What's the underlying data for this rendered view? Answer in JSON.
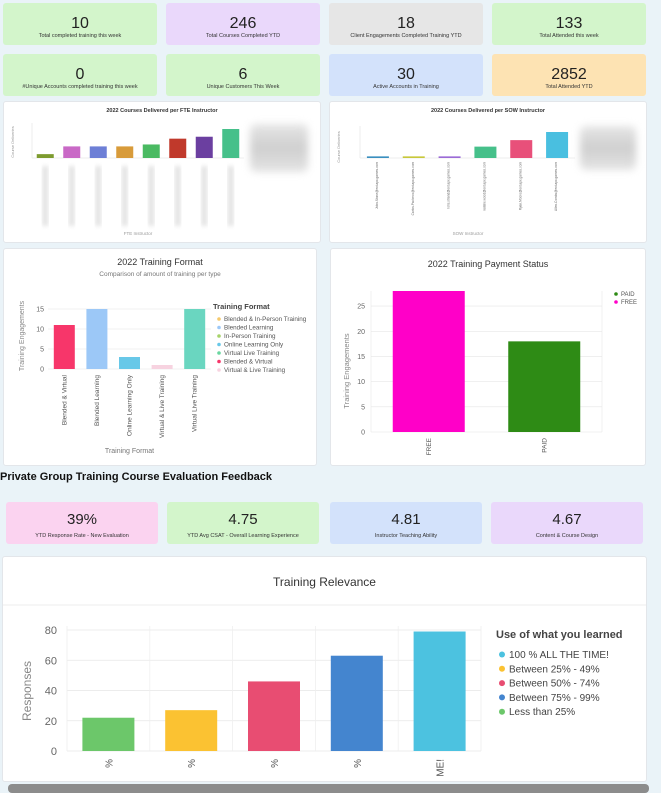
{
  "kpis_row1": [
    {
      "value": "10",
      "label": "Total completed training this week",
      "color": "#d3f5cb"
    },
    {
      "value": "246",
      "label": "Total Courses Completed YTD",
      "color": "#ead8fb"
    },
    {
      "value": "18",
      "label": "Client Engagements Completed Training YTD",
      "color": "#e6e6e6"
    },
    {
      "value": "133",
      "label": "Total Attended this week",
      "color": "#d3f5cb"
    }
  ],
  "kpis_row2": [
    {
      "value": "0",
      "label": "#Unique Accounts completed training this week",
      "color": "#d3f5cb"
    },
    {
      "value": "6",
      "label": "Unique Customers This Week",
      "color": "#d3f5cb"
    },
    {
      "value": "30",
      "label": "Active Accounts in Training",
      "color": "#d3e2fb"
    },
    {
      "value": "2852",
      "label": "Total Attended YTD",
      "color": "#fde3b3"
    }
  ],
  "fte_chart": {
    "title": "2022 Courses Delivered per FTE Instructor",
    "xlabel": "FTE Instructor",
    "ylabel": "Course Deliveries",
    "values": [
      2,
      6,
      6,
      6,
      7,
      10,
      11,
      15
    ],
    "colors": [
      "#7d9b2f",
      "#c969c6",
      "#6d7fd6",
      "#d89b3a",
      "#4aba62",
      "#c0392b",
      "#6b3fa0",
      "#46c08a"
    ]
  },
  "sow_chart": {
    "title": "2022 Courses Delivered per SOW Instructor",
    "xlabel": "SOW Instructor",
    "ylabel": "Course Deliveries",
    "categories": [
      "John.Stone@ext.apx.games.com",
      "Carlos.Pacheco@ext.apx.games.com",
      "loris.strand@ext.apx.games.com",
      "natalie.wood@ext.apx.games.com",
      "Ryan.Moore@ext.apx.games.com",
      "Allen.Combs@ext.apx.games.com"
    ],
    "values": [
      1,
      1,
      1,
      7,
      11,
      16
    ],
    "colors": [
      "#3a8fbf",
      "#c8c83a",
      "#9b6bd6",
      "#46c08a",
      "#e8507a",
      "#49bfe0"
    ]
  },
  "format_chart": {
    "title": "2022 Training Format",
    "subtitle": "Comparison of amount of training per type",
    "xlabel": "Training Format",
    "ylabel": "Training Engagements",
    "ylim": [
      0,
      15
    ],
    "yticks": [
      0,
      5,
      10,
      15
    ],
    "categories": [
      "Blended & Virtual",
      "Blended Learning",
      "Online Learning Only",
      "Virtual & Live Training",
      "Virtual Live Training"
    ],
    "values": [
      11,
      15,
      3,
      1,
      15
    ],
    "colors": [
      "#f7366a",
      "#9cc8f7",
      "#68c8e8",
      "#f7d3e0",
      "#6ad6c0"
    ],
    "legend_title": "Training Format",
    "legend": [
      {
        "label": "Blended & In-Person Training",
        "color": "#f5c96c"
      },
      {
        "label": "Blended Learning",
        "color": "#9cc8f7"
      },
      {
        "label": "In-Person Training",
        "color": "#a7d36a"
      },
      {
        "label": "Online Learning Only",
        "color": "#68c8e8"
      },
      {
        "label": "Virtual Live Training",
        "color": "#6ad6a0"
      },
      {
        "label": "Blended & Virtual",
        "color": "#f7366a"
      },
      {
        "label": "Virtual & Live Training",
        "color": "#f7d3e0"
      }
    ]
  },
  "payment_chart": {
    "title": "2022 Training Payment Status",
    "ylabel": "Training Engagements",
    "ylim": [
      0,
      28
    ],
    "yticks": [
      0,
      5,
      10,
      15,
      20,
      25
    ],
    "categories": [
      "FREE",
      "PAID"
    ],
    "values": [
      28,
      18
    ],
    "colors": [
      "#ff00c8",
      "#2e8b15"
    ],
    "legend": [
      {
        "label": "PAID",
        "color": "#2e8b15"
      },
      {
        "label": "FREE",
        "color": "#ff00c8"
      }
    ]
  },
  "section_title": "Private Group Training Course Evaluation Feedback",
  "kpis_row3": [
    {
      "value": "39%",
      "label": "YTD Response Rate - New Evaluation",
      "color": "#fbd3f0"
    },
    {
      "value": "4.75",
      "label": "YTD Avg CSAT - Overall Learning Experience",
      "color": "#d3f5cb"
    },
    {
      "value": "4.81",
      "label": "Instructor Teaching Ability",
      "color": "#d3e2fb"
    },
    {
      "value": "4.67",
      "label": "Content & Course Design",
      "color": "#ead8fb"
    }
  ],
  "relevance_chart": {
    "title": "Training Relevance",
    "ylabel": "Responses",
    "ylim": [
      0,
      80
    ],
    "yticks": [
      0,
      20,
      40,
      60,
      80
    ],
    "categories": [
      "%",
      "%",
      "%",
      "%",
      "ME!"
    ],
    "values": [
      22,
      27,
      46,
      63,
      79
    ],
    "colors": [
      "#6cc76a",
      "#fbc232",
      "#e84d72",
      "#4485cf",
      "#4cc2e0"
    ],
    "legend_title": "Use of what you learned",
    "legend": [
      {
        "label": "100 % ALL THE TIME!",
        "color": "#4cc2e0"
      },
      {
        "label": "Between 25% - 49%",
        "color": "#fbc232"
      },
      {
        "label": "Between 50% - 74%",
        "color": "#e84d72"
      },
      {
        "label": "Between 75% - 99%",
        "color": "#4485cf"
      },
      {
        "label": "Less than 25%",
        "color": "#6cc76a"
      }
    ]
  }
}
